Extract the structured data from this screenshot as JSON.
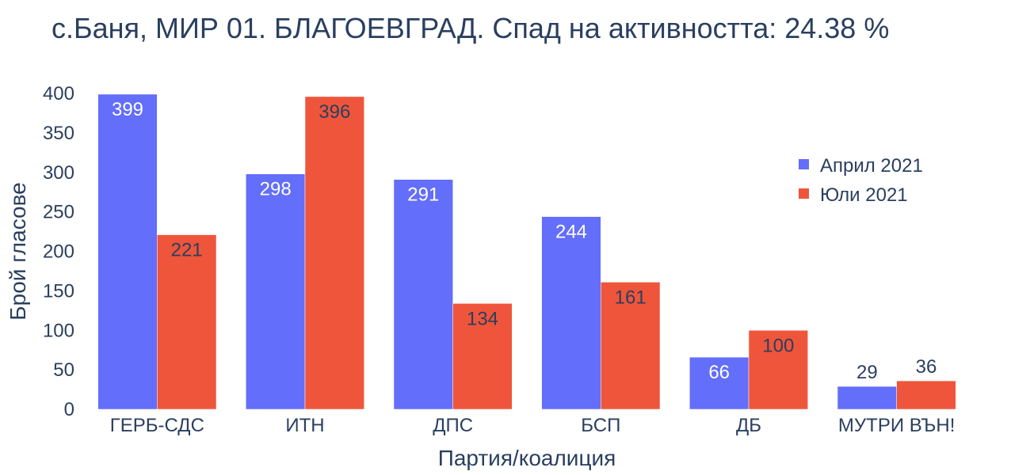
{
  "chart_data": {
    "type": "bar",
    "title": "с.Баня, МИР 01. БЛАГОЕВГРАД. Спад на активността: 24.38 %",
    "xlabel": "Партия/коалиция",
    "ylabel": "Брой гласове",
    "categories": [
      "ГЕРБ-СДС",
      "ИТН",
      "ДПС",
      "БСП",
      "ДБ",
      "МУТРИ ВЪН!"
    ],
    "series": [
      {
        "name": "Април 2021",
        "color": "#636efa",
        "values": [
          399,
          298,
          291,
          244,
          66,
          29
        ]
      },
      {
        "name": "Юли 2021",
        "color": "#ef553b",
        "values": [
          221,
          396,
          134,
          161,
          100,
          36
        ]
      }
    ],
    "ylim": [
      0,
      400
    ],
    "yticks": [
      0,
      50,
      100,
      150,
      200,
      250,
      300,
      350,
      400
    ],
    "grid": false,
    "legend_position": "top-right"
  }
}
